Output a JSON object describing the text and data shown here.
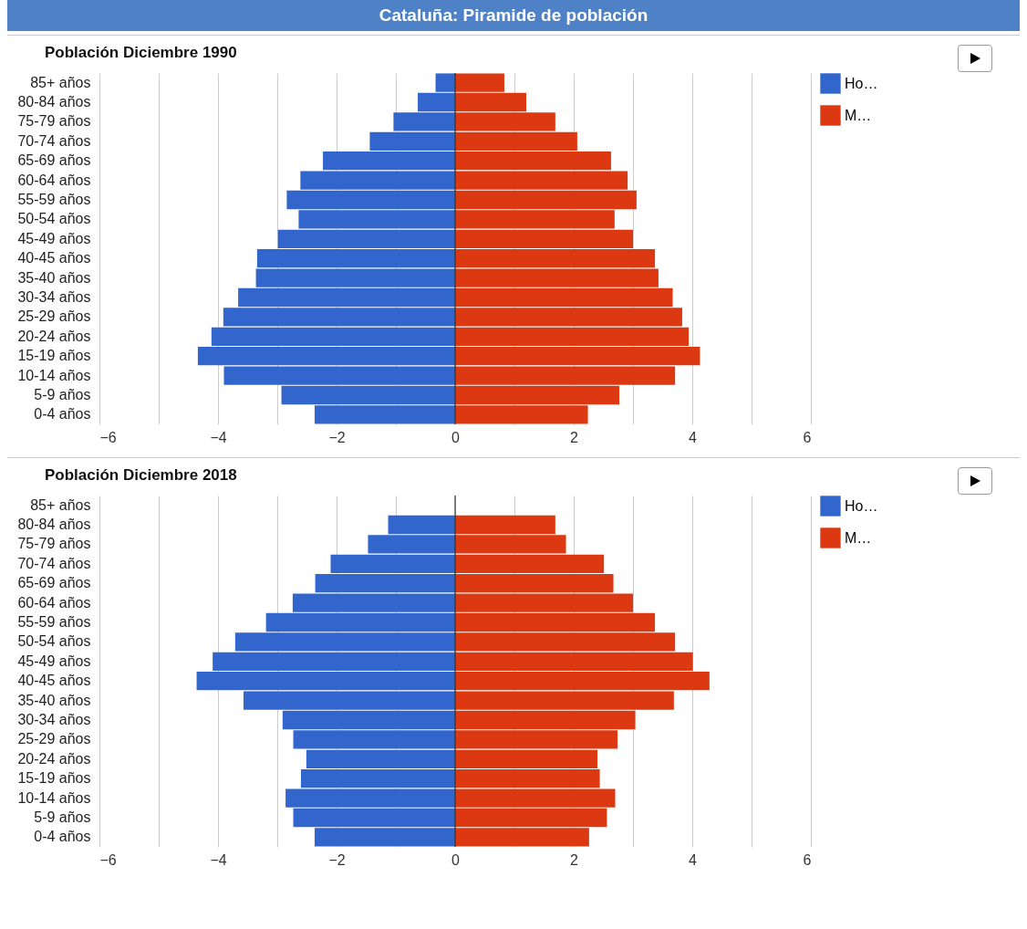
{
  "chart_data": [
    {
      "type": "bar",
      "title": "Cataluña: Piramide de población",
      "subtitle": "Población Diciembre 1990",
      "orientation": "horizontal",
      "stacked": true,
      "categories": [
        "85+ años",
        "80-84 años",
        "75-79 años",
        "70-74 años",
        "65-69 años",
        "60-64 años",
        "55-59 años",
        "50-54 años",
        "45-49 años",
        "40-45 años",
        "35-40 años",
        "30-34 años",
        "25-29 años",
        "20-24 años",
        "15-19 años",
        "10-14 años",
        "5-9 años",
        "0-4 años"
      ],
      "series": [
        {
          "name": "Ho…",
          "color": "#3366cc",
          "values": [
            -0.33,
            -0.63,
            -1.04,
            -1.44,
            -2.23,
            -2.61,
            -2.84,
            -2.64,
            -2.99,
            -3.34,
            -3.36,
            -3.66,
            -3.91,
            -4.11,
            -4.34,
            -3.9,
            -2.93,
            -2.37
          ]
        },
        {
          "name": "M…",
          "color": "#dc3912",
          "values": [
            0.83,
            1.2,
            1.69,
            2.06,
            2.63,
            2.91,
            3.06,
            2.69,
            3.0,
            3.37,
            3.43,
            3.67,
            3.83,
            3.94,
            4.13,
            3.71,
            2.77,
            2.24
          ]
        }
      ],
      "xlim": [
        -6,
        6
      ],
      "xticks": [
        -6,
        {
          "value": -5,
          "label": null
        },
        -4,
        {
          "value": -3,
          "label": null
        },
        -2,
        {
          "value": -1,
          "label": null
        },
        0,
        {
          "value": 1,
          "label": null
        },
        2,
        {
          "value": 3,
          "label": null
        },
        4,
        {
          "value": 5,
          "label": null
        },
        6
      ],
      "ref_lines": [
        {
          "axis": "x",
          "value": 0,
          "color": "#333333"
        }
      ],
      "grid": true,
      "legend": "top right"
    },
    {
      "type": "bar",
      "title": "Población Diciembre 2018",
      "orientation": "horizontal",
      "stacked": true,
      "categories": [
        "85+ años",
        "80-84 años",
        "75-79 años",
        "70-74 años",
        "65-69 años",
        "60-64 años",
        "55-59 años",
        "50-54 años",
        "45-49 años",
        "40-45 años",
        "35-40 años",
        "30-34 años",
        "25-29 años",
        "20-24 años",
        "15-19 años",
        "10-14 años",
        "5-9 años",
        "0-4 años"
      ],
      "series": [
        {
          "name": "Ho…",
          "color": "#3366cc",
          "values": [
            null,
            -1.13,
            -1.47,
            -2.1,
            -2.36,
            -2.74,
            -3.19,
            -3.71,
            -4.09,
            -4.36,
            -3.57,
            -2.91,
            -2.73,
            -2.51,
            -2.6,
            -2.86,
            -2.73,
            -2.37
          ]
        },
        {
          "name": "M…",
          "color": "#dc3912",
          "values": [
            null,
            1.69,
            1.87,
            2.51,
            2.67,
            3.0,
            3.37,
            3.71,
            4.01,
            4.29,
            3.69,
            3.04,
            2.74,
            2.4,
            2.44,
            2.7,
            2.56,
            2.26
          ]
        }
      ],
      "xlim": [
        -6,
        6
      ],
      "xticks": [
        -6,
        {
          "value": -5,
          "label": null
        },
        -4,
        {
          "value": -3,
          "label": null
        },
        -2,
        {
          "value": -1,
          "label": null
        },
        0,
        {
          "value": 1,
          "label": null
        },
        2,
        {
          "value": 3,
          "label": null
        },
        4,
        {
          "value": 5,
          "label": null
        },
        6
      ],
      "ref_lines": [
        {
          "axis": "x",
          "value": 0,
          "color": "#333333"
        }
      ],
      "grid": true,
      "legend": "top right"
    }
  ]
}
